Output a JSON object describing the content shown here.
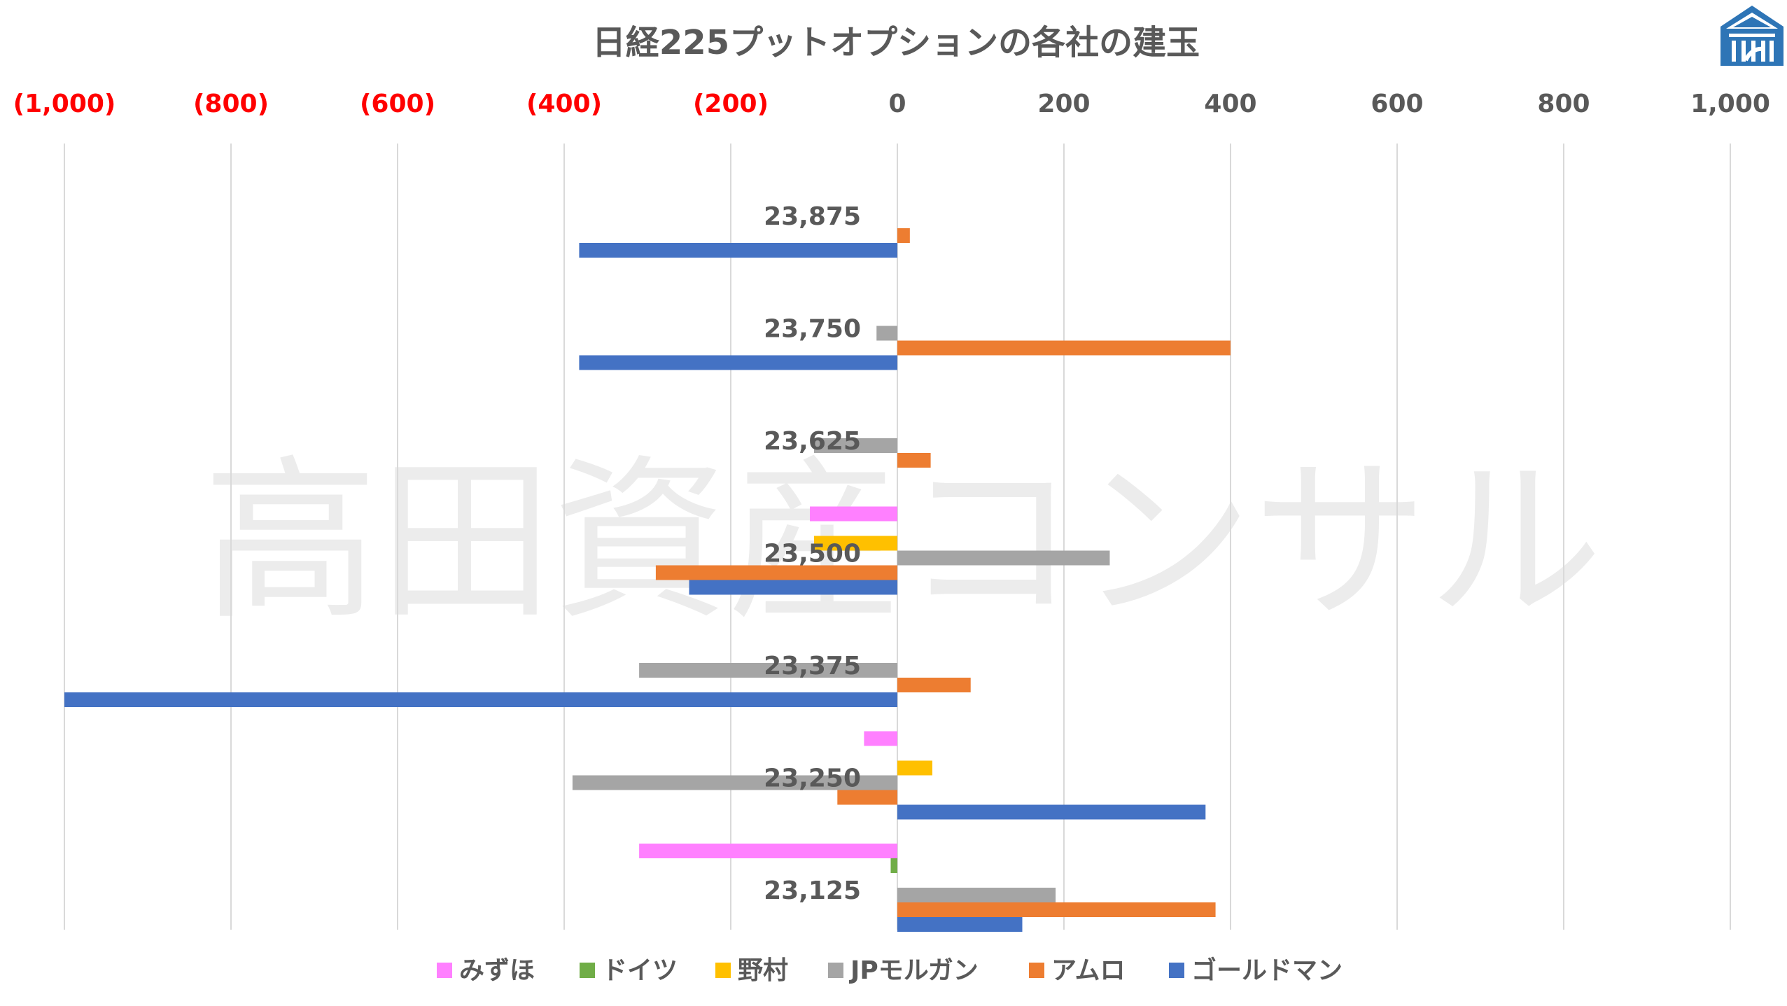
{
  "chart_data": {
    "type": "bar",
    "orientation": "horizontal",
    "title": "日経225プットオプションの各社の建玉",
    "watermark": "高田資産コンサル",
    "logo_icon": "pillared-building-logo-icon",
    "xlim": [
      -1000,
      1000
    ],
    "x_ticks": [
      {
        "value": -1000,
        "label": "(1,000)"
      },
      {
        "value": -800,
        "label": "(800)"
      },
      {
        "value": -600,
        "label": "(600)"
      },
      {
        "value": -400,
        "label": "(400)"
      },
      {
        "value": -200,
        "label": "(200)"
      },
      {
        "value": 0,
        "label": "0"
      },
      {
        "value": 200,
        "label": "200"
      },
      {
        "value": 400,
        "label": "400"
      },
      {
        "value": 600,
        "label": "600"
      },
      {
        "value": 800,
        "label": "800"
      },
      {
        "value": 1000,
        "label": "1,000"
      }
    ],
    "negative_tick_color": "#ff0000",
    "positive_tick_color": "#595959",
    "grid": "vertical",
    "legend_position": "bottom",
    "categories": [
      "23,875",
      "23,750",
      "23,625",
      "23,500",
      "23,375",
      "23,250",
      "23,125"
    ],
    "series": [
      {
        "name": "みずほ",
        "color": "#ff80ff",
        "values": [
          0,
          0,
          0,
          -105,
          0,
          -40,
          -310
        ]
      },
      {
        "name": "ドイツ",
        "color": "#70ad47",
        "values": [
          0,
          0,
          0,
          0,
          0,
          0,
          -8
        ]
      },
      {
        "name": "野村",
        "color": "#ffc000",
        "values": [
          0,
          0,
          0,
          -100,
          0,
          42,
          0
        ]
      },
      {
        "name": "JPモルガン",
        "color": "#a5a5a5",
        "values": [
          0,
          -25,
          -100,
          255,
          -310,
          -390,
          190
        ]
      },
      {
        "name": "アムロ",
        "color": "#ed7d31",
        "values": [
          15,
          400,
          40,
          -290,
          88,
          -72,
          382
        ]
      },
      {
        "name": "ゴールドマン",
        "color": "#4472c4",
        "values": [
          -382,
          -382,
          0,
          -250,
          -1000,
          370,
          150
        ]
      }
    ]
  }
}
